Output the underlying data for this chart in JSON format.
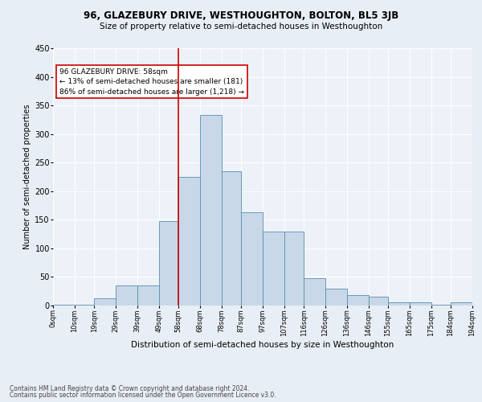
{
  "title": "96, GLAZEBURY DRIVE, WESTHOUGHTON, BOLTON, BL5 3JB",
  "subtitle": "Size of property relative to semi-detached houses in Westhoughton",
  "xlabel": "Distribution of semi-detached houses by size in Westhoughton",
  "ylabel": "Number of semi-detached properties",
  "footnote1": "Contains HM Land Registry data © Crown copyright and database right 2024.",
  "footnote2": "Contains public sector information licensed under the Open Government Licence v3.0.",
  "annotation_title": "96 GLAZEBURY DRIVE: 58sqm",
  "annotation_line1": "← 13% of semi-detached houses are smaller (181)",
  "annotation_line2": "86% of semi-detached houses are larger (1,218) →",
  "bar_color": "#c8d8e8",
  "bar_edge_color": "#5b8db0",
  "vline_color": "#cc0000",
  "vline_x": 58,
  "bin_edges": [
    0,
    10,
    19,
    29,
    39,
    49,
    58,
    68,
    78,
    87,
    97,
    107,
    116,
    126,
    136,
    146,
    155,
    165,
    175,
    184,
    194
  ],
  "bar_heights": [
    2,
    1,
    12,
    35,
    35,
    148,
    225,
    333,
    235,
    163,
    130,
    130,
    48,
    30,
    18,
    15,
    6,
    6,
    2,
    5
  ],
  "tick_labels": [
    "0sqm",
    "10sqm",
    "19sqm",
    "29sqm",
    "39sqm",
    "49sqm",
    "58sqm",
    "68sqm",
    "78sqm",
    "87sqm",
    "97sqm",
    "107sqm",
    "116sqm",
    "126sqm",
    "136sqm",
    "146sqm",
    "155sqm",
    "165sqm",
    "175sqm",
    "184sqm",
    "194sqm"
  ],
  "ylim": [
    0,
    450
  ],
  "yticks": [
    0,
    50,
    100,
    150,
    200,
    250,
    300,
    350,
    400,
    450
  ],
  "background_color": "#e8eef5",
  "plot_background": "#edf2f8",
  "title_fontsize": 8.5,
  "subtitle_fontsize": 7.5,
  "ylabel_fontsize": 7,
  "xlabel_fontsize": 7.5,
  "tick_fontsize": 6,
  "ytick_fontsize": 7,
  "footnote_fontsize": 5.5,
  "annotation_fontsize": 6.5
}
